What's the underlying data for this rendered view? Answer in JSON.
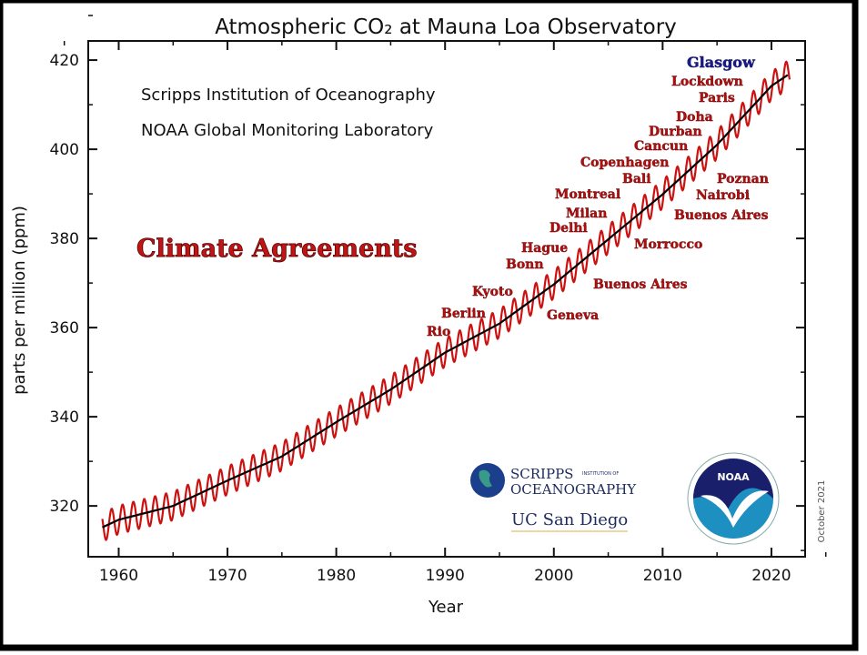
{
  "chart_data": {
    "type": "line",
    "title": "Atmospheric CO₂ at Mauna Loa Observatory",
    "subtitle_lines": [
      "Scripps Institution of Oceanography",
      "NOAA Global Monitoring Laboratory"
    ],
    "xlabel": "Year",
    "ylabel": "parts per million (ppm)",
    "xlim": [
      1957.2,
      2023.1
    ],
    "ylim": [
      308.6,
      424.3
    ],
    "xticks": [
      1960,
      1970,
      1980,
      1990,
      2000,
      2010,
      2020
    ],
    "yticks": [
      320,
      340,
      360,
      380,
      400,
      420
    ],
    "grid": false,
    "series": [
      {
        "color": "#000000",
        "style": "annual-mean",
        "x": [
          1958.5,
          1960,
          1965,
          1970,
          1975,
          1980,
          1985,
          1990,
          1995,
          2000,
          2005,
          2010,
          2015,
          2020,
          2021.7
        ],
        "y": [
          315.2,
          316.9,
          320.0,
          325.7,
          331.1,
          338.8,
          346.1,
          354.4,
          360.9,
          369.7,
          379.8,
          389.9,
          401.0,
          414.2,
          417.0
        ]
      },
      {
        "color": "#cc1111",
        "style": "monthly-seasonal",
        "seasonal_amplitude_ppm": 3.2
      }
    ],
    "annotation_title": "Climate Agreements",
    "annotations": [
      "Glasgow",
      "Lockdown",
      "Paris",
      "Doha",
      "Durban",
      "Cancun",
      "Copenhagen",
      "Bali",
      "Montreal",
      "Milan",
      "Delhi",
      "Hague",
      "Bonn",
      "Kyoto",
      "Berlin",
      "Rio",
      "Poznan",
      "Nairobi",
      "Buenos Aires",
      "Morrocco",
      "Buenos Aires",
      "Geneva"
    ],
    "annotation_colors": {
      "default": "#b01010",
      "Glasgow": "#1a1a8c"
    },
    "date_stamp": "October 2021"
  },
  "logos": {
    "scripps": {
      "line1": "SCRIPPS",
      "line1_small": "INSTITUTION OF",
      "line2": "OCEANOGRAPHY"
    },
    "ucsd": "UC San Diego",
    "noaa": "NOAA"
  }
}
